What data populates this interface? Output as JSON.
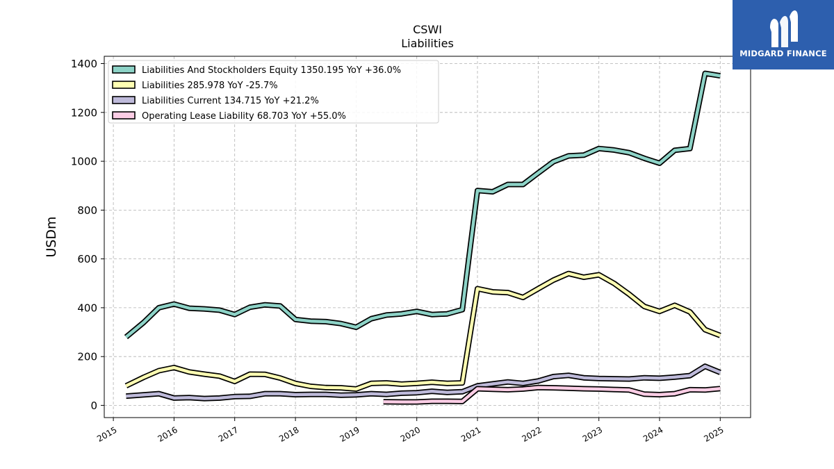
{
  "logo": {
    "text": "MIDGARD FINANCE",
    "color": "#2d5fae"
  },
  "chart_data": {
    "type": "line",
    "title": "CSWI",
    "subtitle": "Liabilities",
    "ylabel": "USDm",
    "xlabel": "",
    "xlim": [
      2014.85,
      2025.5
    ],
    "ylim": [
      -50,
      1430
    ],
    "yticks": [
      0,
      200,
      400,
      600,
      800,
      1000,
      1200,
      1400
    ],
    "xticks": [
      2015,
      2016,
      2017,
      2018,
      2019,
      2020,
      2021,
      2022,
      2023,
      2024,
      2025
    ],
    "grid": true,
    "legend_position": "top-left",
    "series": [
      {
        "name": "Liabilities And Stockholders Equity  1350.195 YoY +36.0%",
        "color": "#8dd3c7",
        "points": [
          [
            2015.21,
            280
          ],
          [
            2015.5,
            340
          ],
          [
            2015.75,
            400
          ],
          [
            2016.0,
            415
          ],
          [
            2016.25,
            398
          ],
          [
            2016.5,
            395
          ],
          [
            2016.75,
            390
          ],
          [
            2017.0,
            372
          ],
          [
            2017.25,
            402
          ],
          [
            2017.5,
            412
          ],
          [
            2017.75,
            407
          ],
          [
            2018.0,
            352
          ],
          [
            2018.25,
            345
          ],
          [
            2018.5,
            343
          ],
          [
            2018.75,
            335
          ],
          [
            2019.0,
            320
          ],
          [
            2019.25,
            355
          ],
          [
            2019.5,
            370
          ],
          [
            2019.75,
            375
          ],
          [
            2020.0,
            385
          ],
          [
            2020.25,
            372
          ],
          [
            2020.5,
            375
          ],
          [
            2020.75,
            392
          ],
          [
            2021.0,
            880
          ],
          [
            2021.25,
            875
          ],
          [
            2021.5,
            905
          ],
          [
            2021.75,
            905
          ],
          [
            2022.0,
            952
          ],
          [
            2022.25,
            998
          ],
          [
            2022.5,
            1022
          ],
          [
            2022.75,
            1025
          ],
          [
            2023.0,
            1052
          ],
          [
            2023.25,
            1046
          ],
          [
            2023.5,
            1035
          ],
          [
            2023.75,
            1012
          ],
          [
            2024.0,
            992
          ],
          [
            2024.25,
            1045
          ],
          [
            2024.5,
            1052
          ],
          [
            2024.75,
            1360
          ],
          [
            2025.0,
            1350
          ]
        ]
      },
      {
        "name": "Liabilities  285.978 YoY -25.7%",
        "color": "#ffffb3",
        "points": [
          [
            2015.21,
            80
          ],
          [
            2015.5,
            115
          ],
          [
            2015.75,
            142
          ],
          [
            2016.0,
            155
          ],
          [
            2016.25,
            137
          ],
          [
            2016.5,
            128
          ],
          [
            2016.75,
            120
          ],
          [
            2017.0,
            98
          ],
          [
            2017.25,
            128
          ],
          [
            2017.5,
            127
          ],
          [
            2017.75,
            112
          ],
          [
            2018.0,
            90
          ],
          [
            2018.25,
            78
          ],
          [
            2018.5,
            73
          ],
          [
            2018.75,
            72
          ],
          [
            2019.0,
            67
          ],
          [
            2019.25,
            90
          ],
          [
            2019.5,
            92
          ],
          [
            2019.75,
            87
          ],
          [
            2020.0,
            90
          ],
          [
            2020.25,
            95
          ],
          [
            2020.5,
            90
          ],
          [
            2020.75,
            92
          ],
          [
            2021.0,
            478
          ],
          [
            2021.25,
            465
          ],
          [
            2021.5,
            462
          ],
          [
            2021.75,
            442
          ],
          [
            2022.0,
            478
          ],
          [
            2022.25,
            513
          ],
          [
            2022.5,
            540
          ],
          [
            2022.75,
            525
          ],
          [
            2023.0,
            535
          ],
          [
            2023.25,
            500
          ],
          [
            2023.5,
            455
          ],
          [
            2023.75,
            405
          ],
          [
            2024.0,
            385
          ],
          [
            2024.25,
            410
          ],
          [
            2024.5,
            383
          ],
          [
            2024.75,
            310
          ],
          [
            2025.0,
            286
          ]
        ]
      },
      {
        "name": "Liabilities Current  134.715 YoY +21.2%",
        "color": "#bebada",
        "points": [
          [
            2015.21,
            38
          ],
          [
            2015.5,
            43
          ],
          [
            2015.75,
            48
          ],
          [
            2016.0,
            30
          ],
          [
            2016.25,
            32
          ],
          [
            2016.5,
            28
          ],
          [
            2016.75,
            30
          ],
          [
            2017.0,
            36
          ],
          [
            2017.25,
            37
          ],
          [
            2017.5,
            48
          ],
          [
            2017.75,
            48
          ],
          [
            2018.0,
            44
          ],
          [
            2018.25,
            45
          ],
          [
            2018.5,
            45
          ],
          [
            2018.75,
            42
          ],
          [
            2019.0,
            43
          ],
          [
            2019.25,
            48
          ],
          [
            2019.5,
            45
          ],
          [
            2019.75,
            50
          ],
          [
            2020.0,
            52
          ],
          [
            2020.25,
            58
          ],
          [
            2020.5,
            53
          ],
          [
            2020.75,
            56
          ],
          [
            2021.0,
            80
          ],
          [
            2021.25,
            88
          ],
          [
            2021.5,
            96
          ],
          [
            2021.75,
            90
          ],
          [
            2022.0,
            100
          ],
          [
            2022.25,
            118
          ],
          [
            2022.5,
            123
          ],
          [
            2022.75,
            113
          ],
          [
            2023.0,
            110
          ],
          [
            2023.25,
            109
          ],
          [
            2023.5,
            108
          ],
          [
            2023.75,
            113
          ],
          [
            2024.0,
            111
          ],
          [
            2024.25,
            116
          ],
          [
            2024.5,
            122
          ],
          [
            2024.75,
            160
          ],
          [
            2025.0,
            134.7
          ]
        ]
      },
      {
        "name": "Operating Lease Liability  68.703 YoY +55.0%",
        "color": "#fccde5",
        "points": [
          [
            2019.45,
            15
          ],
          [
            2019.75,
            14
          ],
          [
            2020.0,
            14
          ],
          [
            2020.25,
            17
          ],
          [
            2020.5,
            17
          ],
          [
            2020.75,
            16
          ],
          [
            2021.0,
            68
          ],
          [
            2021.25,
            66
          ],
          [
            2021.5,
            64
          ],
          [
            2021.75,
            67
          ],
          [
            2022.0,
            73
          ],
          [
            2022.25,
            72
          ],
          [
            2022.5,
            70
          ],
          [
            2022.75,
            68
          ],
          [
            2023.0,
            67
          ],
          [
            2023.25,
            65
          ],
          [
            2023.5,
            63
          ],
          [
            2023.75,
            46
          ],
          [
            2024.0,
            44
          ],
          [
            2024.25,
            48
          ],
          [
            2024.5,
            64
          ],
          [
            2024.75,
            63
          ],
          [
            2025.0,
            68.7
          ]
        ]
      }
    ]
  }
}
